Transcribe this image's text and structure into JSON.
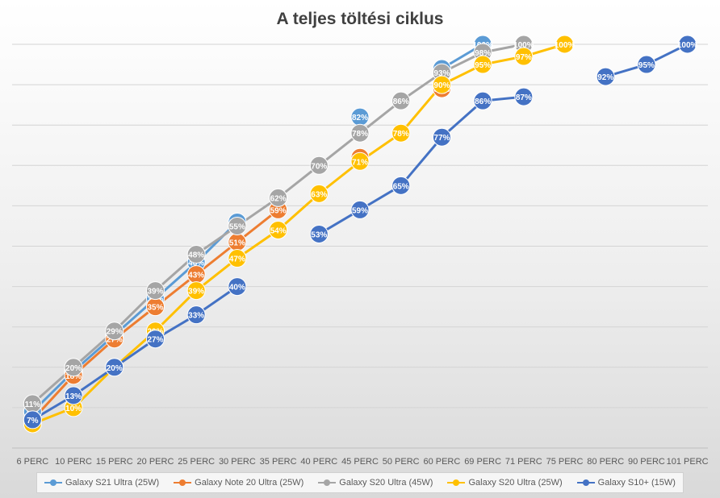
{
  "chart_data": {
    "type": "line",
    "title": "A teljes töltési ciklus",
    "categories": [
      "6 PERC",
      "10 PERC",
      "15 PERC",
      "20 PERC",
      "25 PERC",
      "30 PERC",
      "35 PERC",
      "40 PERC",
      "45 PERC",
      "50 PERC",
      "60 PERC",
      "69 PERC",
      "71 PERC",
      "75 PERC",
      "80 PERC",
      "90 PERC",
      "101 PERC"
    ],
    "ylim": [
      0,
      100
    ],
    "grid": true,
    "legend_position": "bottom",
    "series": [
      {
        "name": "Galaxy S21 Ultra (25W)",
        "color": "#5B9BD5",
        "values": [
          9,
          19,
          28,
          37,
          46,
          56,
          null,
          null,
          82,
          null,
          94,
          100,
          null,
          null,
          null,
          null,
          null
        ]
      },
      {
        "name": "Galaxy Note 20 Ultra (25W)",
        "color": "#ED7D31",
        "values": [
          7,
          18,
          27,
          35,
          43,
          51,
          59,
          null,
          72,
          null,
          89,
          null,
          null,
          null,
          null,
          null,
          null
        ]
      },
      {
        "name": "Galaxy S20 Ultra (45W)",
        "color": "#A5A5A5",
        "values": [
          11,
          20,
          29,
          39,
          48,
          55,
          62,
          70,
          78,
          86,
          93,
          98,
          100,
          null,
          null,
          null,
          null
        ]
      },
      {
        "name": "Galaxy S20 Ultra (25W)",
        "color": "#FFC000",
        "values": [
          6,
          10,
          20,
          29,
          39,
          47,
          54,
          63,
          71,
          78,
          90,
          95,
          97,
          100,
          null,
          null,
          null
        ]
      },
      {
        "name": "Galaxy S10+ (15W)",
        "color": "#4472C4",
        "values": [
          7,
          13,
          20,
          27,
          33,
          40,
          null,
          53,
          59,
          65,
          77,
          86,
          87,
          null,
          92,
          95,
          100
        ]
      }
    ]
  }
}
